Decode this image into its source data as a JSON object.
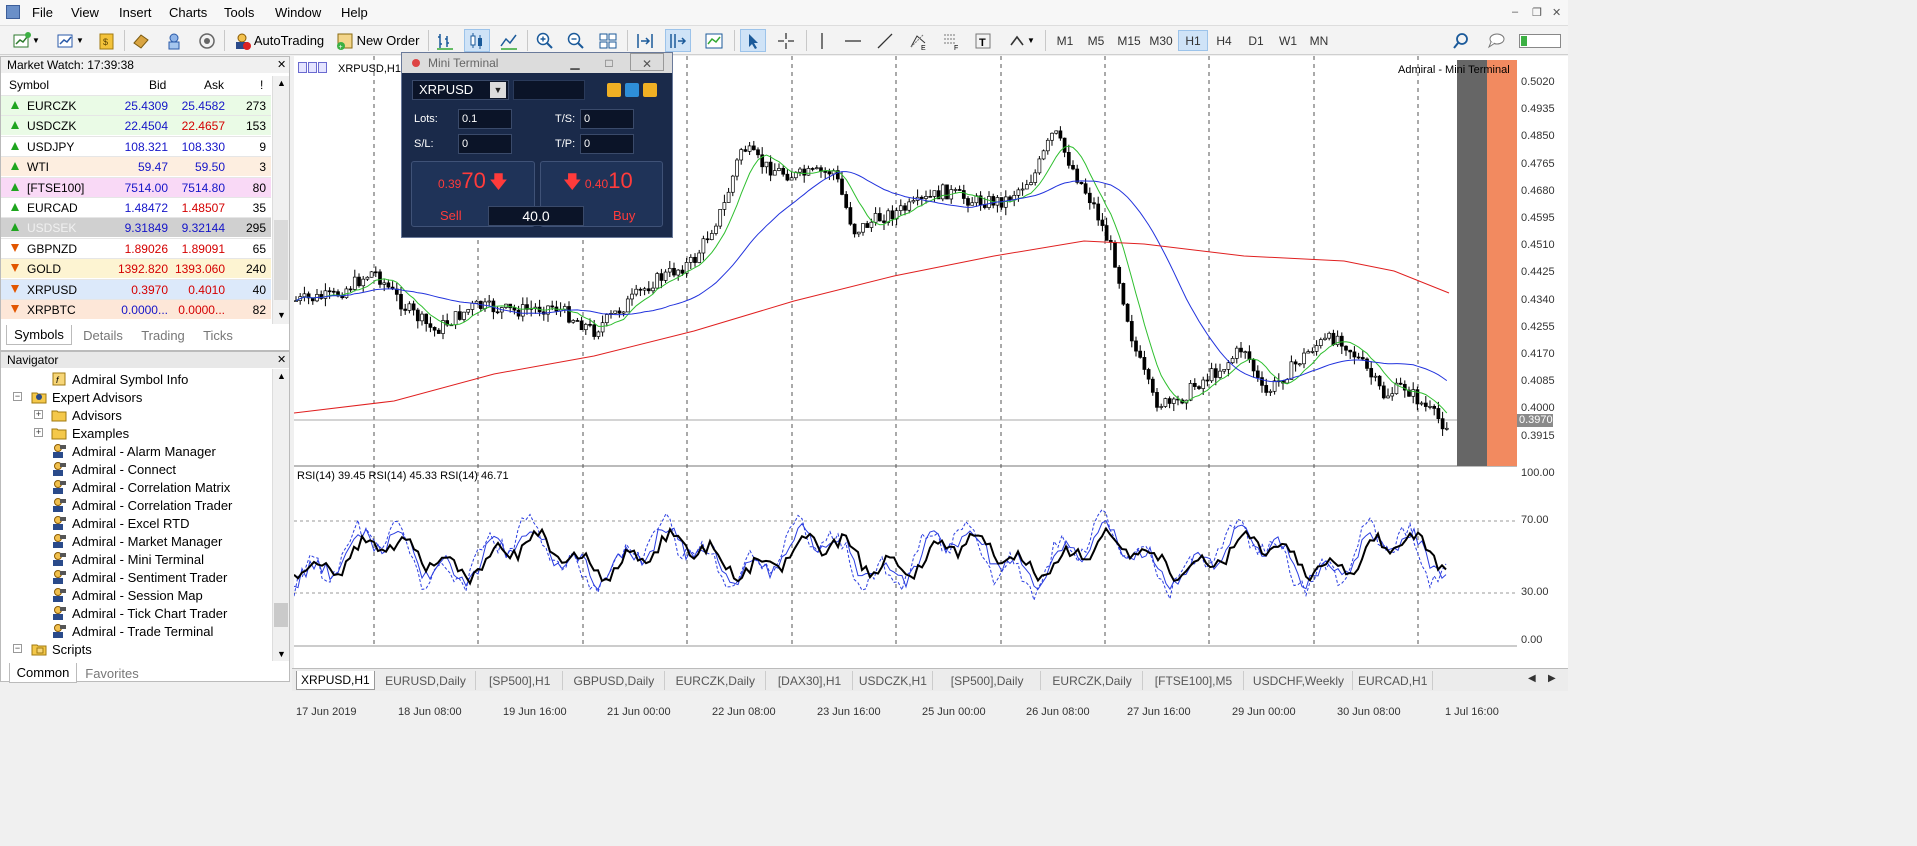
{
  "menu": [
    "File",
    "View",
    "Insert",
    "Charts",
    "Tools",
    "Window",
    "Help"
  ],
  "toolbar": {
    "autotrading": "AutoTrading",
    "new_order": "New Order",
    "timeframes": [
      "M1",
      "M5",
      "M15",
      "M30",
      "H1",
      "H4",
      "D1",
      "W1",
      "MN"
    ],
    "active_tf": "H1"
  },
  "market_watch": {
    "title": "Market Watch: 17:39:38",
    "cols": [
      "Symbol",
      "Bid",
      "Ask",
      "!"
    ],
    "rows": [
      {
        "symbol": "EURCZK",
        "bid": "25.4309",
        "ask": "25.4582",
        "spread": "273",
        "dir": "up",
        "bg": "#eafbe6",
        "ask_red": false
      },
      {
        "symbol": "USDCZK",
        "bid": "22.4504",
        "ask": "22.4657",
        "spread": "153",
        "dir": "up",
        "bg": "#eafbe6",
        "ask_red": true
      },
      {
        "symbol": "USDJPY",
        "bid": "108.321",
        "ask": "108.330",
        "spread": "9",
        "dir": "up",
        "bg": "#ffffff",
        "ask_red": false
      },
      {
        "symbol": "WTI",
        "bid": "59.47",
        "ask": "59.50",
        "spread": "3",
        "dir": "up",
        "bg": "#fdeee0",
        "ask_red": false
      },
      {
        "symbol": "[FTSE100]",
        "bid": "7514.00",
        "ask": "7514.80",
        "spread": "80",
        "dir": "up",
        "bg": "#f9d9f6",
        "ask_red": false
      },
      {
        "symbol": "EURCAD",
        "bid": "1.48472",
        "ask": "1.48507",
        "spread": "35",
        "dir": "up",
        "bg": "#ffffff",
        "ask_red": true
      },
      {
        "symbol": "USDSEK",
        "bid": "9.31849",
        "ask": "9.32144",
        "spread": "295",
        "dir": "up",
        "bg": "#d0d0d0",
        "ask_red": false,
        "sym_grey": true
      },
      {
        "symbol": "GBPNZD",
        "bid": "1.89026",
        "ask": "1.89091",
        "spread": "65",
        "dir": "dn",
        "bg": "#ffffff",
        "ask_red": true,
        "bid_red": true
      },
      {
        "symbol": "GOLD",
        "bid": "1392.820",
        "ask": "1393.060",
        "spread": "240",
        "dir": "dn",
        "bg": "#fdf4d2",
        "ask_red": true,
        "bid_red": true
      },
      {
        "symbol": "XRPUSD",
        "bid": "0.3970",
        "ask": "0.4010",
        "spread": "40",
        "dir": "dn",
        "bg": "#dce9fa",
        "ask_red": true,
        "bid_red": true
      },
      {
        "symbol": "XRPBTC",
        "bid": "0.0000...",
        "ask": "0.0000...",
        "spread": "82",
        "dir": "dn",
        "bg": "#fde7d8",
        "ask_red": true
      }
    ],
    "tabs": [
      "Symbols",
      "Details",
      "Trading",
      "Ticks"
    ],
    "active_tab": "Symbols"
  },
  "navigator": {
    "title": "Navigator",
    "items": [
      {
        "label": "Admiral Symbol Info",
        "level": 2,
        "icon": "script"
      },
      {
        "label": "Expert Advisors",
        "level": 0,
        "icon": "folder-ea",
        "exp": "-"
      },
      {
        "label": "Advisors",
        "level": 1,
        "icon": "folder",
        "exp": "+"
      },
      {
        "label": "Examples",
        "level": 1,
        "icon": "folder",
        "exp": "+"
      },
      {
        "label": "Admiral - Alarm Manager",
        "level": 1,
        "icon": "ea"
      },
      {
        "label": "Admiral - Connect",
        "level": 1,
        "icon": "ea"
      },
      {
        "label": "Admiral - Correlation Matrix",
        "level": 1,
        "icon": "ea"
      },
      {
        "label": "Admiral - Correlation Trader",
        "level": 1,
        "icon": "ea"
      },
      {
        "label": "Admiral - Excel RTD",
        "level": 1,
        "icon": "ea"
      },
      {
        "label": "Admiral - Market Manager",
        "level": 1,
        "icon": "ea"
      },
      {
        "label": "Admiral - Mini Terminal",
        "level": 1,
        "icon": "ea"
      },
      {
        "label": "Admiral - Sentiment Trader",
        "level": 1,
        "icon": "ea"
      },
      {
        "label": "Admiral - Session Map",
        "level": 1,
        "icon": "ea"
      },
      {
        "label": "Admiral - Tick Chart Trader",
        "level": 1,
        "icon": "ea"
      },
      {
        "label": "Admiral - Trade Terminal",
        "level": 1,
        "icon": "ea"
      },
      {
        "label": "Scripts",
        "level": 0,
        "icon": "folder-script",
        "exp": "-"
      }
    ],
    "tabs": [
      "Common",
      "Favorites"
    ],
    "active_tab": "Common"
  },
  "chart": {
    "label": "XRPUSD,H1",
    "overlay_label": "Admiral - Mini Terminal",
    "price_ticks": [
      "0.5020",
      "0.4935",
      "0.4850",
      "0.4765",
      "0.4680",
      "0.4595",
      "0.4510",
      "0.4425",
      "0.4340",
      "0.4255",
      "0.4170",
      "0.4085",
      "0.4000",
      "0.3915"
    ],
    "current_price": "0.3970",
    "rsi_label": "RSI(14) 39.45 RSI(14) 45.33 RSI(14) 46.71",
    "rsi_ticks": [
      "100.00",
      "70.00",
      "30.00",
      "0.00"
    ],
    "time_ticks": [
      "17 Jun 2019",
      "18 Jun 08:00",
      "19 Jun 16:00",
      "21 Jun 00:00",
      "22 Jun 08:00",
      "23 Jun 16:00",
      "25 Jun 00:00",
      "26 Jun 08:00",
      "27 Jun 16:00",
      "29 Jun 00:00",
      "30 Jun 08:00",
      "1 Jul 16:00"
    ]
  },
  "mini_terminal": {
    "title": "Mini Terminal",
    "symbol": "XRPUSD",
    "lots_label": "Lots:",
    "lots": "0.1",
    "sl_label": "S/L:",
    "sl": "0",
    "ts_label": "T/S:",
    "ts": "0",
    "tp_label": "T/P:",
    "tp": "0",
    "sell_small": "0.39",
    "sell_big": "70",
    "sell_label": "Sell",
    "buy_small": "0.40",
    "buy_big": "10",
    "buy_label": "Buy",
    "spread": "40.0"
  },
  "chart_tabs": [
    "XRPUSD,H1",
    "EURUSD,Daily",
    "[SP500],H1",
    "GBPUSD,Daily",
    "EURCZK,Daily",
    "[DAX30],H1",
    "USDCZK,H1",
    "[SP500],Daily",
    "EURCZK,Daily",
    "[FTSE100],M5",
    "USDCHF,Weekly",
    "EURCAD,H1"
  ],
  "active_chart_tab": "XRPUSD,H1"
}
